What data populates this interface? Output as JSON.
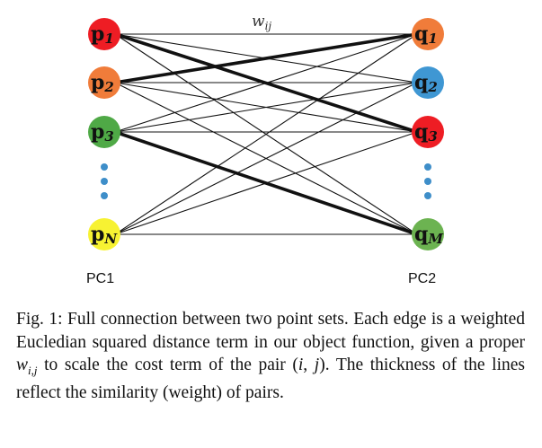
{
  "left_nodes": [
    {
      "label": "p",
      "sub": "1",
      "color": "#ee1d24"
    },
    {
      "label": "p",
      "sub": "2",
      "color": "#f07c3a"
    },
    {
      "label": "p",
      "sub": "3",
      "color": "#4fa946"
    },
    {
      "label": "p",
      "sub": "N",
      "color": "#f7f232"
    }
  ],
  "right_nodes": [
    {
      "label": "q",
      "sub": "1",
      "color": "#f07c3a"
    },
    {
      "label": "q",
      "sub": "2",
      "color": "#3f97d3"
    },
    {
      "label": "q",
      "sub": "3",
      "color": "#ee1d24"
    },
    {
      "label": "q",
      "sub": "M",
      "color": "#6cb351"
    }
  ],
  "ellipsis_color": "#3e8ec9",
  "edges": [
    {
      "from": 0,
      "to": 0,
      "weight": 1
    },
    {
      "from": 0,
      "to": 1,
      "weight": 1
    },
    {
      "from": 0,
      "to": 2,
      "weight": 3
    },
    {
      "from": 0,
      "to": 3,
      "weight": 1
    },
    {
      "from": 1,
      "to": 0,
      "weight": 3
    },
    {
      "from": 1,
      "to": 1,
      "weight": 1
    },
    {
      "from": 1,
      "to": 2,
      "weight": 1
    },
    {
      "from": 1,
      "to": 3,
      "weight": 1
    },
    {
      "from": 2,
      "to": 0,
      "weight": 1
    },
    {
      "from": 2,
      "to": 1,
      "weight": 1
    },
    {
      "from": 2,
      "to": 2,
      "weight": 1
    },
    {
      "from": 2,
      "to": 3,
      "weight": 3
    },
    {
      "from": 3,
      "to": 0,
      "weight": 1
    },
    {
      "from": 3,
      "to": 1,
      "weight": 1
    },
    {
      "from": 3,
      "to": 2,
      "weight": 1
    },
    {
      "from": 3,
      "to": 3,
      "weight": 1
    }
  ],
  "weight_label": "w",
  "weight_label_sub": "ij",
  "pc1_label": "PC1",
  "pc2_label": "PC2",
  "caption": "Fig. 1: Full connection between two point sets. Each edge is a weighted Eucledian squared distance term in our object function, given a proper w_{i,j} to scale the cost term of the pair (i, j). The thickness of the lines reflect the similarity (weight) of pairs."
}
